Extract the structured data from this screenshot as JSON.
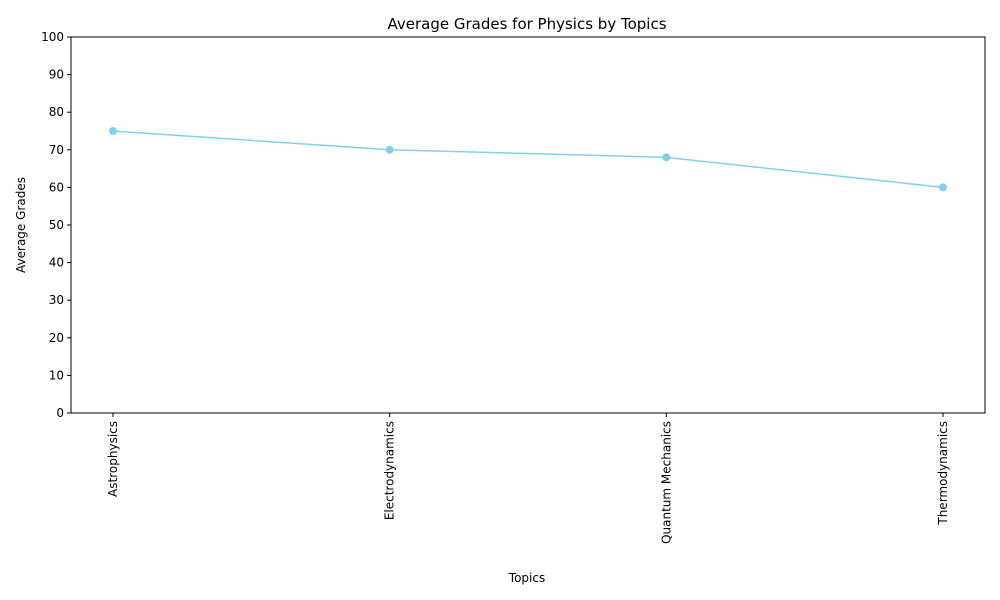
{
  "chart_data": {
    "type": "line",
    "title": "Average Grades for Physics by Topics",
    "xlabel": "Topics",
    "ylabel": "Average Grades",
    "categories": [
      "Astrophysics",
      "Electrodynamics",
      "Quantum Mechanics",
      "Thermodynamics"
    ],
    "series": [
      {
        "values": [
          75,
          70,
          68,
          60
        ],
        "color": "#87ceeb"
      }
    ],
    "ylim": [
      0,
      100
    ],
    "yticks": [
      0,
      10,
      20,
      30,
      40,
      50,
      60,
      70,
      80,
      90,
      100
    ],
    "grid": false,
    "legend": "none",
    "markers": true
  }
}
